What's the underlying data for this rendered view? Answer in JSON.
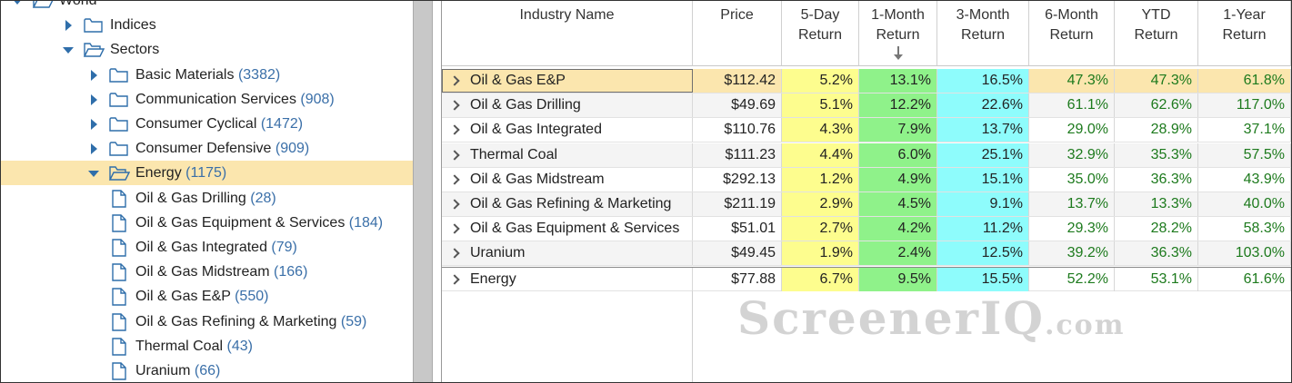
{
  "colors": {
    "selected_bg": "#fbe6ae",
    "yellow": "#fdfd8e",
    "green": "#8ff28a",
    "cyan": "#8efcfc",
    "count_blue": "#3a6fa8",
    "positive_green": "#1d7a1d"
  },
  "tree": {
    "items": [
      {
        "label": "World",
        "count": "",
        "arrow": "down",
        "icon": "folder-open-icon",
        "level": 0,
        "selected": false
      },
      {
        "label": "Indices",
        "count": "",
        "arrow": "right",
        "icon": "folder-icon",
        "level": 1,
        "selected": false
      },
      {
        "label": "Sectors",
        "count": "",
        "arrow": "down",
        "icon": "folder-open-icon",
        "level": 1,
        "selected": false
      },
      {
        "label": "Basic Materials",
        "count": "(3382)",
        "arrow": "right",
        "icon": "folder-icon",
        "level": 2,
        "selected": false
      },
      {
        "label": "Communication Services",
        "count": "(908)",
        "arrow": "right",
        "icon": "folder-icon",
        "level": 2,
        "selected": false
      },
      {
        "label": "Consumer Cyclical",
        "count": "(1472)",
        "arrow": "right",
        "icon": "folder-icon",
        "level": 2,
        "selected": false
      },
      {
        "label": "Consumer Defensive",
        "count": "(909)",
        "arrow": "right",
        "icon": "folder-icon",
        "level": 2,
        "selected": false
      },
      {
        "label": "Energy",
        "count": "(1175)",
        "arrow": "down",
        "icon": "folder-open-icon",
        "level": 2,
        "selected": true
      },
      {
        "label": "Oil & Gas Drilling",
        "count": "(28)",
        "arrow": "",
        "icon": "document-icon",
        "level": 3,
        "selected": false
      },
      {
        "label": "Oil & Gas Equipment & Services",
        "count": "(184)",
        "arrow": "",
        "icon": "document-icon",
        "level": 3,
        "selected": false
      },
      {
        "label": "Oil & Gas Integrated",
        "count": "(79)",
        "arrow": "",
        "icon": "document-icon",
        "level": 3,
        "selected": false
      },
      {
        "label": "Oil & Gas Midstream",
        "count": "(166)",
        "arrow": "",
        "icon": "document-icon",
        "level": 3,
        "selected": false
      },
      {
        "label": "Oil & Gas E&P",
        "count": "(550)",
        "arrow": "",
        "icon": "document-icon",
        "level": 3,
        "selected": false
      },
      {
        "label": "Oil & Gas Refining & Marketing",
        "count": "(59)",
        "arrow": "",
        "icon": "document-icon",
        "level": 3,
        "selected": false
      },
      {
        "label": "Thermal Coal",
        "count": "(43)",
        "arrow": "",
        "icon": "document-icon",
        "level": 3,
        "selected": false
      },
      {
        "label": "Uranium",
        "count": "(66)",
        "arrow": "",
        "icon": "document-icon",
        "level": 3,
        "selected": false
      }
    ]
  },
  "grid": {
    "columns": [
      {
        "key": "name",
        "label": [
          "Industry Name"
        ],
        "sorted": false
      },
      {
        "key": "price",
        "label": [
          "Price"
        ],
        "sorted": false
      },
      {
        "key": "d5",
        "label": [
          "5-Day",
          "Return"
        ],
        "sorted": false
      },
      {
        "key": "m1",
        "label": [
          "1-Month",
          "Return"
        ],
        "sorted": true
      },
      {
        "key": "m3",
        "label": [
          "3-Month",
          "Return"
        ],
        "sorted": false
      },
      {
        "key": "m6",
        "label": [
          "6-Month",
          "Return"
        ],
        "sorted": false
      },
      {
        "key": "ytd",
        "label": [
          "YTD",
          "Return"
        ],
        "sorted": false
      },
      {
        "key": "y1",
        "label": [
          "1-Year",
          "Return"
        ],
        "sorted": false
      }
    ],
    "rows": [
      {
        "name": "Oil & Gas E&P",
        "price": "$112.42",
        "d5": "5.2%",
        "m1": "13.1%",
        "m3": "16.5%",
        "m6": "47.3%",
        "ytd": "47.3%",
        "y1": "61.8%",
        "selected": true
      },
      {
        "name": "Oil & Gas Drilling",
        "price": "$49.69",
        "d5": "5.1%",
        "m1": "12.2%",
        "m3": "22.6%",
        "m6": "61.1%",
        "ytd": "62.6%",
        "y1": "117.0%",
        "selected": false
      },
      {
        "name": "Oil & Gas Integrated",
        "price": "$110.76",
        "d5": "4.3%",
        "m1": "7.9%",
        "m3": "13.7%",
        "m6": "29.0%",
        "ytd": "28.9%",
        "y1": "37.1%",
        "selected": false
      },
      {
        "name": "Thermal Coal",
        "price": "$111.23",
        "d5": "4.4%",
        "m1": "6.0%",
        "m3": "25.1%",
        "m6": "32.9%",
        "ytd": "35.3%",
        "y1": "57.5%",
        "selected": false
      },
      {
        "name": "Oil & Gas Midstream",
        "price": "$292.13",
        "d5": "1.2%",
        "m1": "4.9%",
        "m3": "15.1%",
        "m6": "35.0%",
        "ytd": "36.3%",
        "y1": "43.9%",
        "selected": false
      },
      {
        "name": "Oil & Gas Refining & Marketing",
        "price": "$211.19",
        "d5": "2.9%",
        "m1": "4.5%",
        "m3": "9.1%",
        "m6": "13.7%",
        "ytd": "13.3%",
        "y1": "40.0%",
        "selected": false
      },
      {
        "name": "Oil & Gas Equipment & Services",
        "price": "$51.01",
        "d5": "2.7%",
        "m1": "4.2%",
        "m3": "11.2%",
        "m6": "29.3%",
        "ytd": "28.2%",
        "y1": "58.3%",
        "selected": false
      },
      {
        "name": "Uranium",
        "price": "$49.45",
        "d5": "1.9%",
        "m1": "2.4%",
        "m3": "12.5%",
        "m6": "39.2%",
        "ytd": "36.3%",
        "y1": "103.0%",
        "selected": false
      }
    ],
    "total": {
      "name": "Energy",
      "price": "$77.88",
      "d5": "6.7%",
      "m1": "9.5%",
      "m3": "15.5%",
      "m6": "52.2%",
      "ytd": "53.1%",
      "y1": "61.6%"
    }
  },
  "watermark": {
    "main": "ScreenerIQ",
    "suffix": ".com"
  }
}
